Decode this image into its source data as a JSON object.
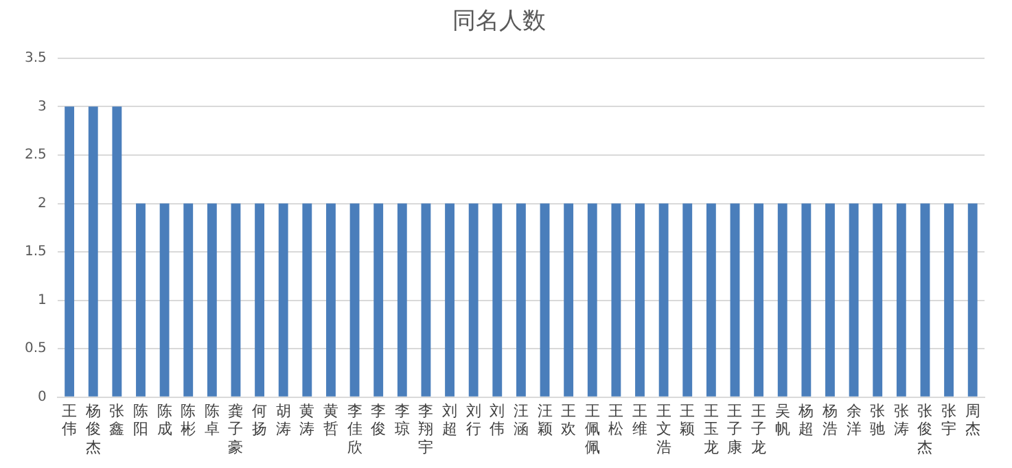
{
  "chart_data": {
    "type": "bar",
    "title": "同名人数",
    "categories": [
      "王伟",
      "杨俊杰",
      "张鑫",
      "陈阳",
      "陈成",
      "陈彬",
      "陈卓",
      "龚子豪",
      "何扬",
      "胡涛",
      "黄涛",
      "黄哲",
      "李佳欣",
      "李俊",
      "李琼",
      "李翔宇",
      "刘超",
      "刘行",
      "刘伟",
      "汪涵",
      "汪颖",
      "王欢",
      "王佩佩",
      "王松",
      "王维",
      "王文浩",
      "王颖",
      "王玉龙",
      "王子康",
      "王子龙",
      "吴帆",
      "杨超",
      "杨浩",
      "余洋",
      "张驰",
      "张涛",
      "张俊杰",
      "张宇",
      "周杰"
    ],
    "values": [
      3,
      3,
      3,
      2,
      2,
      2,
      2,
      2,
      2,
      2,
      2,
      2,
      2,
      2,
      2,
      2,
      2,
      2,
      2,
      2,
      2,
      2,
      2,
      2,
      2,
      2,
      2,
      2,
      2,
      2,
      2,
      2,
      2,
      2,
      2,
      2,
      2,
      2,
      2
    ],
    "color": "#4a7ebb",
    "ylim": [
      0,
      3.5
    ],
    "yticks": [
      0,
      0.5,
      1,
      1.5,
      2,
      2.5,
      3,
      3.5
    ],
    "grid": "y"
  }
}
